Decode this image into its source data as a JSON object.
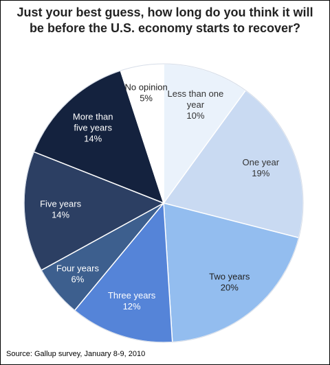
{
  "title": "Just your best guess, how long do you think it will be before the U.S. economy starts to recover?",
  "source": "Source: Gallup survey, January 8-9, 2010",
  "chart_data": {
    "type": "pie",
    "title": "Just your best guess, how long do you think it will be before the U.S. economy starts to recover?",
    "slices": [
      {
        "label": [
          "Less than one",
          "year"
        ],
        "value": 10,
        "value_label": "10%",
        "color": "#eaf2fb",
        "text_color": "#333333"
      },
      {
        "label": [
          "One year"
        ],
        "value": 19,
        "value_label": "19%",
        "color": "#c9daf2",
        "text_color": "#333333"
      },
      {
        "label": [
          "Two years"
        ],
        "value": 20,
        "value_label": "20%",
        "color": "#93bdef",
        "text_color": "#222222"
      },
      {
        "label": [
          "Three years"
        ],
        "value": 12,
        "value_label": "12%",
        "color": "#5584d8",
        "text_color": "#ffffff"
      },
      {
        "label": [
          "Four years"
        ],
        "value": 6,
        "value_label": "6%",
        "color": "#3d5f8e",
        "text_color": "#ffffff"
      },
      {
        "label": [
          "Five years"
        ],
        "value": 14,
        "value_label": "14%",
        "color": "#2c3f63",
        "text_color": "#ffffff"
      },
      {
        "label": [
          "More than",
          "five years"
        ],
        "value": 14,
        "value_label": "14%",
        "color": "#14223e",
        "text_color": "#ffffff"
      },
      {
        "label": [
          "No opinion"
        ],
        "value": 5,
        "value_label": "5%",
        "color": "#ffffff",
        "text_color": "#222222"
      }
    ]
  }
}
